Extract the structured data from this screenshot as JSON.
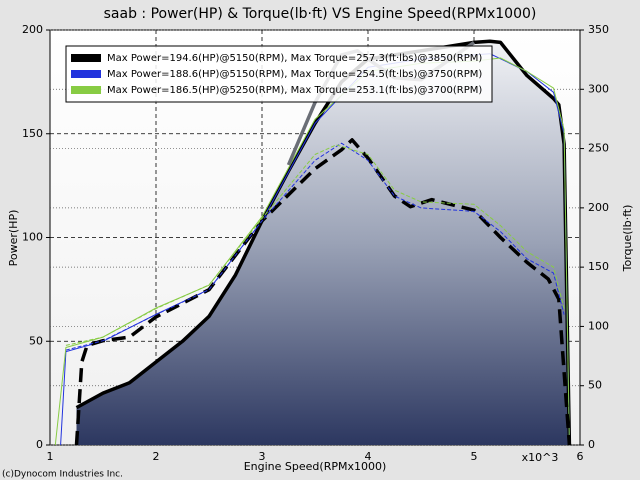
{
  "chart_data": {
    "type": "line",
    "title": "saab : Power(HP) & Torque(lb·ft) VS Engine Speed(RPMx1000)",
    "x_label": "Engine Speed(RPMx1000)",
    "y_label": "Power(HP)",
    "y2_label": "Torque(lb·ft)",
    "x_multiplier": "x10^3",
    "credit": "(c)Dynocom Industries Inc.",
    "xlim": [
      1,
      6
    ],
    "xticks": [
      1,
      2,
      3,
      4,
      5,
      6
    ],
    "ylim": [
      0,
      200
    ],
    "yticks": [
      0,
      50,
      100,
      150,
      200
    ],
    "y2lim": [
      0,
      350
    ],
    "y2ticks": [
      0,
      50,
      100,
      150,
      200,
      250,
      300,
      350
    ],
    "grid": true,
    "legend": "top-left",
    "series": [
      {
        "name": "Max Power=194.6(HP)@5150(RPM), Max Torque=257.3(ft·lbs)@3850(RPM)",
        "color": "#000000",
        "width": 3.5,
        "dashed": false,
        "fill": true,
        "x": [
          1.25,
          1.5,
          1.75,
          2,
          2.25,
          2.5,
          2.75,
          3,
          3.25,
          3.5,
          3.75,
          4,
          4.25,
          4.5,
          4.75,
          5,
          5.15,
          5.25,
          5.5,
          5.75,
          5.8,
          5.85,
          5.9
        ],
        "values": [
          18,
          25,
          30,
          40,
          50,
          62,
          82,
          108,
          132,
          155,
          175,
          186,
          188,
          190,
          192,
          194,
          194.6,
          194,
          178,
          167,
          164,
          145,
          0
        ]
      },
      {
        "name": "Max Power=188.6(HP)@5150(RPM), Max Torque=254.5(ft·lbs)@3750(RPM)",
        "color": "#2233dd",
        "width": 1,
        "dashed": false,
        "fill": false,
        "x": [
          1.1,
          1.15,
          1.5,
          2,
          2.5,
          3,
          3.5,
          4,
          4.5,
          5,
          5.15,
          5.5,
          5.75,
          5.85,
          5.9
        ],
        "values": [
          0,
          45,
          50,
          63,
          75,
          108,
          155,
          182,
          186,
          188,
          188.6,
          180,
          170,
          150,
          0
        ]
      },
      {
        "name": "Max Power=186.5(HP)@5250(RPM), Max Torque=253.1(ft·lbs)@3700(RPM)",
        "color": "#88cc44",
        "width": 1,
        "dashed": false,
        "fill": false,
        "x": [
          1.05,
          1.15,
          1.5,
          2,
          2.5,
          3,
          3.5,
          4,
          4.5,
          5,
          5.25,
          5.5,
          5.75,
          5.85,
          5.9
        ],
        "values": [
          0,
          47,
          52,
          66,
          77,
          110,
          157,
          180,
          184,
          185,
          186.5,
          180,
          172,
          152,
          0
        ]
      },
      {
        "color": "#6a6e76",
        "width": 3.5,
        "dashed": false,
        "fill": false,
        "x": [
          3.25,
          3.5,
          3.75,
          3.9,
          4,
          4.25,
          4.5,
          4.75,
          5
        ],
        "values": [
          135,
          165,
          188,
          190,
          186,
          177,
          176,
          185,
          194
        ]
      },
      {
        "color": "#000000",
        "width": 3.5,
        "dashed": true,
        "fill": false,
        "axis": "y2",
        "x": [
          1.25,
          1.3,
          1.35,
          1.5,
          1.75,
          2,
          2.5,
          3,
          3.5,
          3.75,
          3.85,
          4,
          4.25,
          4.4,
          4.6,
          5,
          5.25,
          5.5,
          5.7,
          5.8,
          5.9
        ],
        "values": [
          0,
          70,
          84,
          88,
          91,
          108,
          131,
          189,
          233,
          249,
          257.3,
          242,
          210,
          201,
          207,
          198,
          175,
          154,
          140,
          123,
          0
        ]
      },
      {
        "color": "#2233dd",
        "width": 1,
        "dashed": true,
        "fill": false,
        "axis": "y2",
        "x": [
          1.15,
          1.5,
          2,
          2.5,
          3,
          3.5,
          3.75,
          4,
          4.25,
          4.5,
          5,
          5.25,
          5.5,
          5.75,
          5.85
        ],
        "values": [
          80,
          88,
          110,
          131,
          189,
          240,
          254.5,
          240,
          210,
          200,
          197,
          180,
          157,
          145,
          110
        ]
      },
      {
        "color": "#88cc44",
        "width": 1,
        "dashed": true,
        "fill": false,
        "axis": "y2",
        "x": [
          1.15,
          1.5,
          2,
          2.5,
          3,
          3.5,
          3.7,
          4,
          4.25,
          4.5,
          5,
          5.25,
          5.5,
          5.75,
          5.85
        ],
        "values": [
          84,
          91,
          115,
          135,
          191,
          245,
          253.1,
          245,
          215,
          205,
          203,
          185,
          163,
          150,
          115
        ]
      }
    ]
  }
}
